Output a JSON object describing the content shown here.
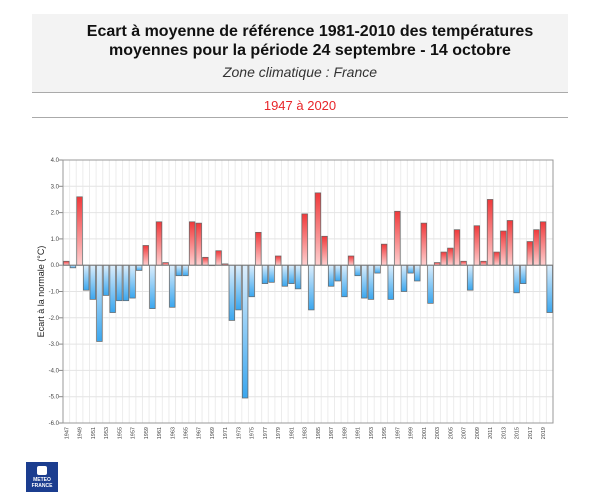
{
  "header": {
    "title": "Ecart à moyenne de référence 1981-2010 des températures moyennes pour la période 24 septembre - 14 octobre",
    "zone": "Zone climatique : France",
    "period": "1947 à 2020"
  },
  "logo": {
    "text": "METEO FRANCE"
  },
  "chart_data": {
    "type": "bar",
    "title": "",
    "xlabel": "",
    "ylabel": "Ecart à la normale (°C)",
    "ylim": [
      -6,
      4
    ],
    "yticks": [
      "4.0",
      "3.0",
      "2.0",
      "1.0",
      "0.0",
      "-1.0",
      "-2.0",
      "-3.0",
      "-4.0",
      "-5.0",
      "-6.0"
    ],
    "grid": true,
    "colors": {
      "positive": "#f0393b",
      "negative": "#3aa6ee"
    },
    "categories": [
      1947,
      1948,
      1949,
      1950,
      1951,
      1952,
      1953,
      1954,
      1955,
      1956,
      1957,
      1958,
      1959,
      1960,
      1961,
      1962,
      1963,
      1964,
      1965,
      1966,
      1967,
      1968,
      1969,
      1970,
      1971,
      1972,
      1973,
      1974,
      1975,
      1976,
      1977,
      1978,
      1979,
      1980,
      1981,
      1982,
      1983,
      1984,
      1985,
      1986,
      1987,
      1988,
      1989,
      1990,
      1991,
      1992,
      1993,
      1994,
      1995,
      1996,
      1997,
      1998,
      1999,
      2000,
      2001,
      2002,
      2003,
      2004,
      2005,
      2006,
      2007,
      2008,
      2009,
      2010,
      2011,
      2012,
      2013,
      2014,
      2015,
      2016,
      2017,
      2018,
      2019,
      2020
    ],
    "values": [
      0.15,
      -0.1,
      2.6,
      -0.95,
      -1.3,
      -2.9,
      -1.15,
      -1.8,
      -1.35,
      -1.35,
      -1.25,
      -0.2,
      0.75,
      -1.65,
      1.65,
      0.1,
      -1.6,
      -0.4,
      -0.4,
      1.65,
      1.6,
      0.3,
      0.0,
      0.55,
      0.05,
      -2.1,
      -1.7,
      -5.05,
      -1.2,
      1.25,
      -0.7,
      -0.65,
      0.35,
      -0.8,
      -0.7,
      -0.9,
      1.95,
      -1.7,
      2.75,
      1.1,
      -0.8,
      -0.6,
      -1.2,
      0.35,
      -0.4,
      -1.25,
      -1.3,
      -0.3,
      0.8,
      -1.3,
      2.05,
      -1.0,
      -0.3,
      -0.6,
      1.6,
      -1.45,
      0.1,
      0.5,
      0.65,
      1.35,
      0.15,
      -0.95,
      1.5,
      0.15,
      2.5,
      0.5,
      1.3,
      1.7,
      -1.05,
      -0.7,
      0.9,
      1.35,
      1.65,
      -1.8
    ]
  }
}
